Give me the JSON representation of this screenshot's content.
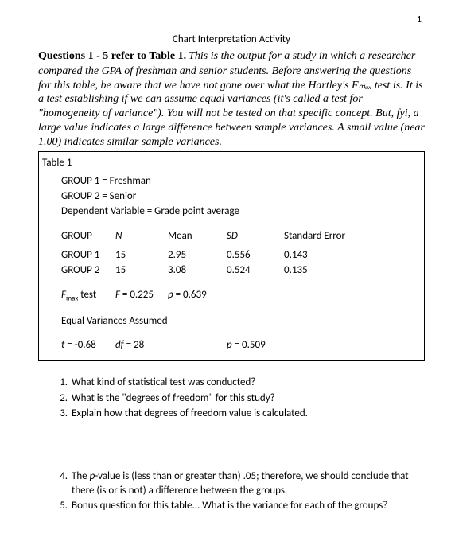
{
  "page_number": "1",
  "title": "Chart Interpretation Activity",
  "intro_lead": "Questions 1 - 5 refer to Table 1.",
  "intro_body": "This is the output for a study in which a researcher compared the GPA of freshman and senior students. Before answering the questions for this table, be aware that we have not gone over what the Hartley's Fₘₐₓ test is. It is a test establishing if we can assume equal variances (it's called a test for \"homogeneity of variance\"). You will not be tested on that specific concept. But, fyi, a large value indicates a large difference between sample variances. A small value (near 1.00) indicates similar sample variances.",
  "table": {
    "label": "Table 1",
    "group1_def": "GROUP 1 = Freshman",
    "group2_def": "GROUP 2 = Senior",
    "depvar": "Dependent Variable = Grade point average",
    "headers": {
      "group": "GROUP",
      "n": "N",
      "mean": "Mean",
      "sd": "SD",
      "se": "Standard Error"
    },
    "rows": [
      {
        "group": "GROUP 1",
        "n": "15",
        "mean": "2.95",
        "sd": "0.556",
        "se": "0.143"
      },
      {
        "group": "GROUP 2",
        "n": "15",
        "mean": "3.08",
        "sd": "0.524",
        "se": "0.135"
      }
    ],
    "fmax": {
      "label_prefix": "F",
      "label_sub": "max",
      "label_suffix": " test",
      "F_prefix": "F",
      "F_val": " = 0.225",
      "p_prefix": "p",
      "p_val": " = 0.639"
    },
    "eqvar": "Equal Variances Assumed",
    "ttest": {
      "t_prefix": "t",
      "t_val": " = -0.68",
      "df_prefix": "df",
      "df_val": " = 28",
      "p_prefix": "p",
      "p_val": " = 0.509"
    }
  },
  "questions": {
    "q1": "What kind of statistical test was conducted?",
    "q2": "What is the \"degrees of freedom\" for this study?",
    "q3": "Explain how that degrees of freedom value is calculated.",
    "q4_a": "The ",
    "q4_b": "p",
    "q4_c": "-value is (less than  or  greater than) .05; therefore, we should conclude that there (is  or  is not) a difference between the groups.",
    "q5": "Bonus question for this table... What is the variance for each of the groups?"
  }
}
